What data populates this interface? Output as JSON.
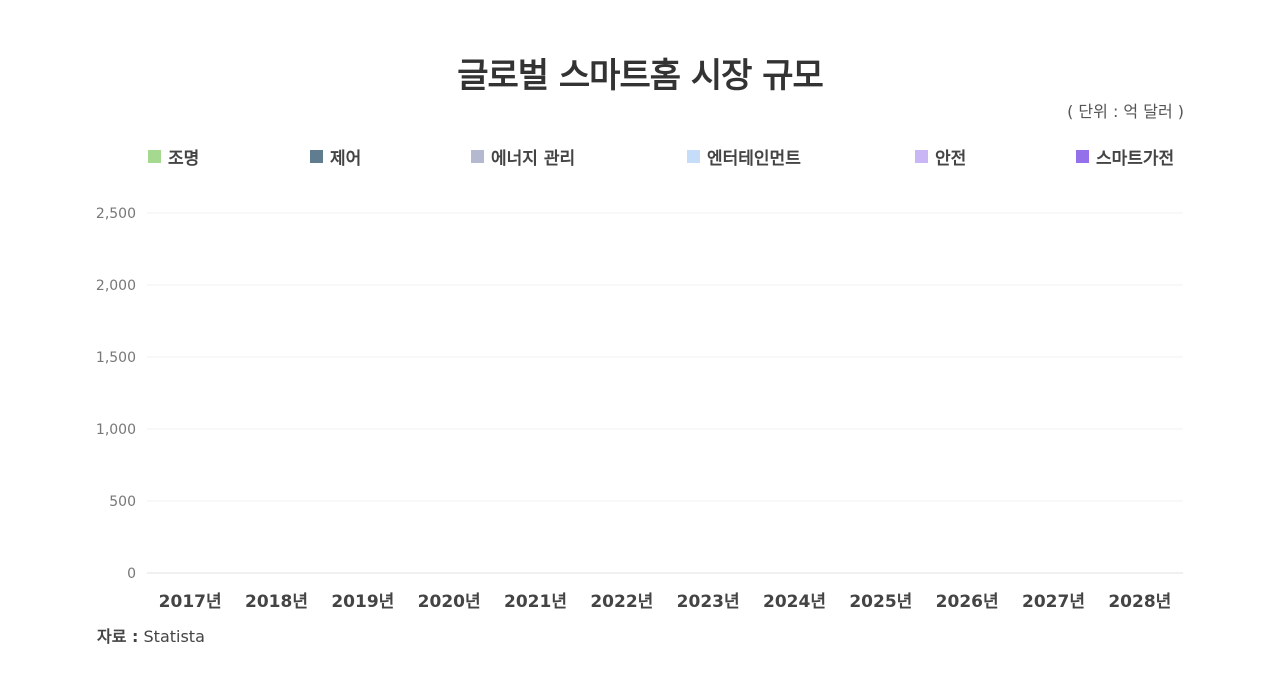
{
  "chart_data": {
    "type": "bar",
    "title": "글로벌 스마트홈 시장 규모",
    "unit_label": "( 단위 : 억 달러 )",
    "xlabel": "",
    "ylabel": "",
    "ylim": [
      0,
      2500
    ],
    "y_ticks": [
      0,
      500,
      1000,
      1500,
      2000,
      2500
    ],
    "y_tick_labels": [
      "0",
      "500",
      "1,000",
      "1,500",
      "2,000",
      "2,500"
    ],
    "categories": [
      "2017년",
      "2018년",
      "2019년",
      "2020년",
      "2021년",
      "2022년",
      "2023년",
      "2024년",
      "2025년",
      "2026년",
      "2027년",
      "2028년"
    ],
    "stacked": true,
    "series": [
      {
        "name": "조명",
        "color": "#a5d98f",
        "values": [
          0,
          0,
          0,
          0,
          0,
          0,
          0,
          0,
          0,
          0,
          0,
          0
        ]
      },
      {
        "name": "제어",
        "color": "#5f7d8e",
        "values": [
          0,
          0,
          0,
          0,
          0,
          0,
          0,
          0,
          0,
          0,
          0,
          0
        ]
      },
      {
        "name": "에너지 관리",
        "color": "#b4b9cf",
        "values": [
          0,
          0,
          0,
          0,
          0,
          0,
          0,
          0,
          0,
          0,
          0,
          0
        ]
      },
      {
        "name": "엔터테인먼트",
        "color": "#c5ddf8",
        "values": [
          0,
          0,
          0,
          0,
          0,
          0,
          0,
          0,
          0,
          0,
          0,
          0
        ]
      },
      {
        "name": "안전",
        "color": "#c9b6f5",
        "values": [
          0,
          0,
          0,
          0,
          0,
          0,
          0,
          0,
          0,
          0,
          0,
          0
        ]
      },
      {
        "name": "스마트가전",
        "color": "#9470ea",
        "values": [
          0,
          0,
          0,
          0,
          0,
          0,
          0,
          0,
          0,
          0,
          0,
          0
        ]
      }
    ],
    "legend_position": "top",
    "grid": true
  },
  "source": {
    "label": "자료 :",
    "value": "Statista"
  }
}
